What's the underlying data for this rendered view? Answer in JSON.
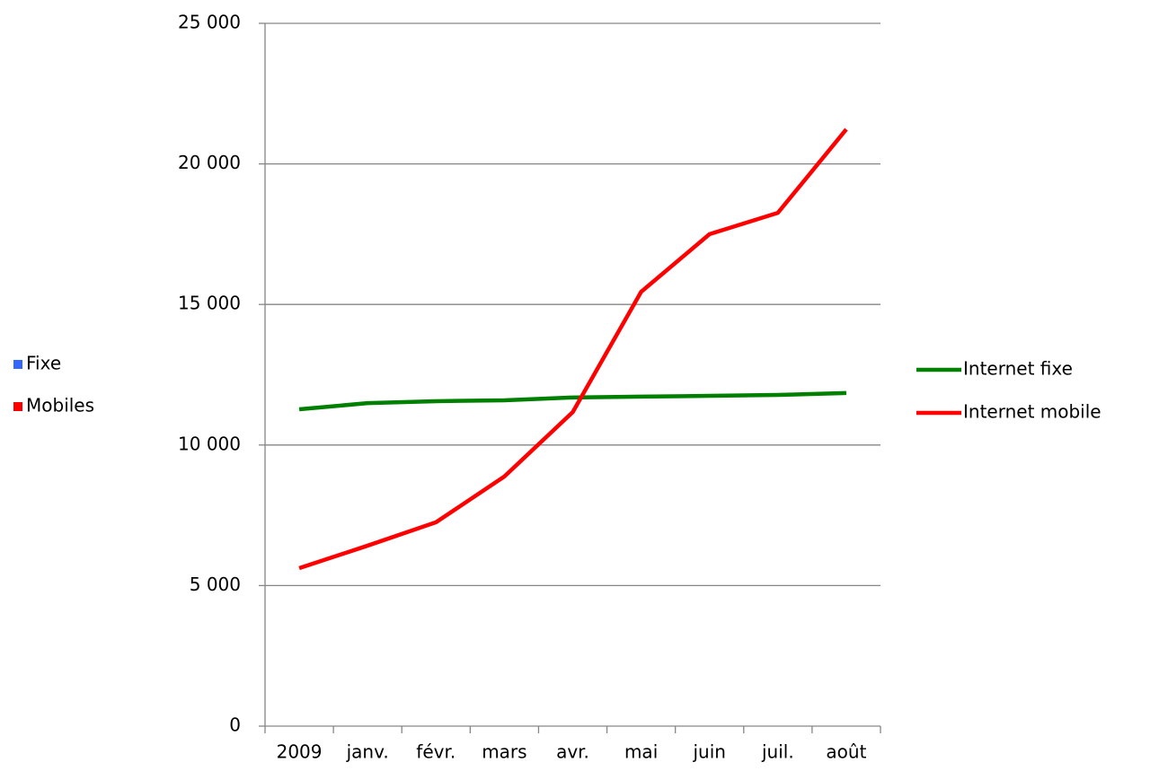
{
  "chart_data": {
    "type": "line",
    "categories": [
      "2009",
      "janv.",
      "févr.",
      "mars",
      "avr.",
      "mai",
      "juin",
      "juil.",
      "août"
    ],
    "series": [
      {
        "name": "Internet fixe",
        "color": "#008000",
        "values": [
          11270,
          11490,
          11560,
          11590,
          11690,
          11720,
          11750,
          11780,
          11850
        ]
      },
      {
        "name": "Internet mobile",
        "color": "#ff0000",
        "values": [
          5620,
          6420,
          7250,
          8880,
          11170,
          15450,
          17500,
          18260,
          21230
        ]
      }
    ],
    "ylim": [
      0,
      25000
    ],
    "yticks": [
      0,
      {
        "value": 5000,
        "label": "5 000"
      },
      {
        "value": 10000,
        "label": "10 000"
      },
      {
        "value": 15000,
        "label": "15 000"
      },
      {
        "value": 20000,
        "label": "20 000"
      },
      {
        "value": 25000,
        "label": "25 000"
      }
    ],
    "grid": true,
    "legend": "right",
    "extra_legend": [
      {
        "name": "Fixe",
        "color": "#3366ff"
      },
      {
        "name": "Mobiles",
        "color": "#ff0000"
      }
    ]
  }
}
